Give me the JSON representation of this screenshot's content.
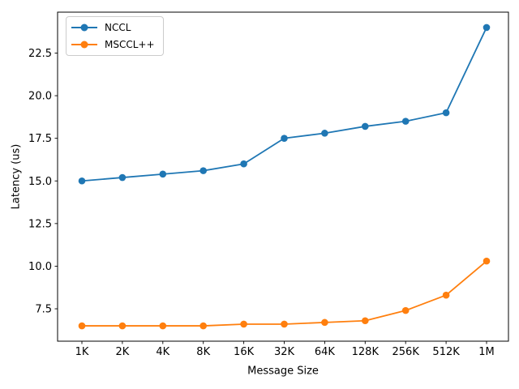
{
  "chart_data": {
    "type": "line",
    "title": "",
    "xlabel": "Message Size",
    "ylabel": "Latency (us)",
    "categories": [
      "1K",
      "2K",
      "4K",
      "8K",
      "16K",
      "32K",
      "64K",
      "128K",
      "256K",
      "512K",
      "1M"
    ],
    "series": [
      {
        "name": "NCCL",
        "color": "#1f77b4",
        "marker": "circle",
        "values": [
          15.0,
          15.2,
          15.4,
          15.6,
          16.0,
          17.5,
          17.8,
          18.2,
          18.5,
          19.0,
          24.0
        ]
      },
      {
        "name": "MSCCL++",
        "color": "#ff7f0e",
        "marker": "circle",
        "values": [
          6.5,
          6.5,
          6.5,
          6.5,
          6.6,
          6.6,
          6.7,
          6.8,
          7.4,
          8.3,
          10.3
        ]
      }
    ],
    "ylim": [
      5.6,
      24.9
    ],
    "yticks": [
      7.5,
      10.0,
      12.5,
      15.0,
      17.5,
      20.0,
      22.5
    ],
    "ytick_labels": [
      "7.5",
      "10.0",
      "12.5",
      "15.0",
      "17.5",
      "20.0",
      "22.5"
    ],
    "legend_position": "upper left",
    "grid": false,
    "axes_box": true,
    "background_color": "#ffffff",
    "text_color": "#000000"
  }
}
